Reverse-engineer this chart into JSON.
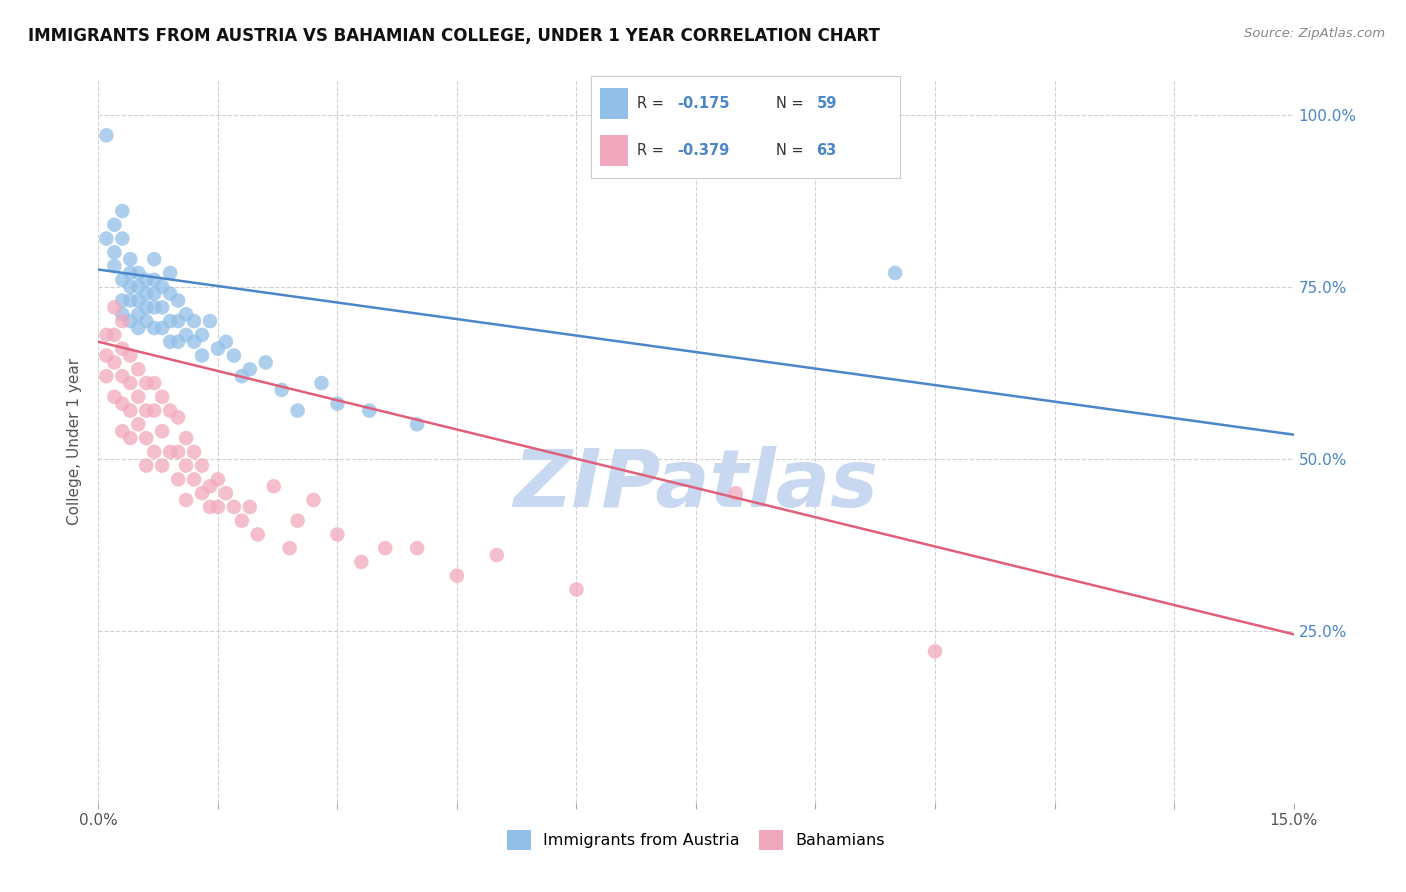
{
  "title": "IMMIGRANTS FROM AUSTRIA VS BAHAMIAN COLLEGE, UNDER 1 YEAR CORRELATION CHART",
  "source": "Source: ZipAtlas.com",
  "ylabel": "College, Under 1 year",
  "ytick_labels": [
    "",
    "25.0%",
    "50.0%",
    "75.0%",
    "100.0%"
  ],
  "ytick_values": [
    0,
    0.25,
    0.5,
    0.75,
    1.0
  ],
  "xlim": [
    0.0,
    0.15
  ],
  "ylim": [
    0.0,
    1.05
  ],
  "blue_color": "#92bfe8",
  "pink_color": "#f2a8bc",
  "blue_line_color": "#4a86c8",
  "pink_line_color": "#e0607a",
  "watermark": "ZIPatlas",
  "watermark_color": "#c8d8f0",
  "blue_scatter_x": [
    0.001,
    0.001,
    0.002,
    0.002,
    0.002,
    0.003,
    0.003,
    0.003,
    0.003,
    0.003,
    0.004,
    0.004,
    0.004,
    0.004,
    0.004,
    0.005,
    0.005,
    0.005,
    0.005,
    0.005,
    0.006,
    0.006,
    0.006,
    0.006,
    0.007,
    0.007,
    0.007,
    0.007,
    0.007,
    0.008,
    0.008,
    0.008,
    0.009,
    0.009,
    0.009,
    0.009,
    0.01,
    0.01,
    0.01,
    0.011,
    0.011,
    0.012,
    0.012,
    0.013,
    0.013,
    0.014,
    0.015,
    0.016,
    0.017,
    0.018,
    0.019,
    0.021,
    0.023,
    0.025,
    0.028,
    0.03,
    0.034,
    0.04,
    0.1
  ],
  "blue_scatter_y": [
    0.97,
    0.82,
    0.8,
    0.78,
    0.84,
    0.86,
    0.82,
    0.76,
    0.73,
    0.71,
    0.79,
    0.77,
    0.75,
    0.73,
    0.7,
    0.77,
    0.75,
    0.73,
    0.71,
    0.69,
    0.76,
    0.74,
    0.72,
    0.7,
    0.79,
    0.76,
    0.74,
    0.72,
    0.69,
    0.75,
    0.72,
    0.69,
    0.77,
    0.74,
    0.7,
    0.67,
    0.73,
    0.7,
    0.67,
    0.71,
    0.68,
    0.7,
    0.67,
    0.68,
    0.65,
    0.7,
    0.66,
    0.67,
    0.65,
    0.62,
    0.63,
    0.64,
    0.6,
    0.57,
    0.61,
    0.58,
    0.57,
    0.55,
    0.77
  ],
  "pink_scatter_x": [
    0.001,
    0.001,
    0.001,
    0.002,
    0.002,
    0.002,
    0.002,
    0.003,
    0.003,
    0.003,
    0.003,
    0.003,
    0.004,
    0.004,
    0.004,
    0.004,
    0.005,
    0.005,
    0.005,
    0.006,
    0.006,
    0.006,
    0.006,
    0.007,
    0.007,
    0.007,
    0.008,
    0.008,
    0.008,
    0.009,
    0.009,
    0.01,
    0.01,
    0.01,
    0.011,
    0.011,
    0.011,
    0.012,
    0.012,
    0.013,
    0.013,
    0.014,
    0.014,
    0.015,
    0.015,
    0.016,
    0.017,
    0.018,
    0.019,
    0.02,
    0.022,
    0.024,
    0.025,
    0.027,
    0.03,
    0.033,
    0.036,
    0.04,
    0.045,
    0.05,
    0.06,
    0.08,
    0.105
  ],
  "pink_scatter_y": [
    0.68,
    0.65,
    0.62,
    0.72,
    0.68,
    0.64,
    0.59,
    0.7,
    0.66,
    0.62,
    0.58,
    0.54,
    0.65,
    0.61,
    0.57,
    0.53,
    0.63,
    0.59,
    0.55,
    0.61,
    0.57,
    0.53,
    0.49,
    0.61,
    0.57,
    0.51,
    0.59,
    0.54,
    0.49,
    0.57,
    0.51,
    0.56,
    0.51,
    0.47,
    0.53,
    0.49,
    0.44,
    0.51,
    0.47,
    0.49,
    0.45,
    0.46,
    0.43,
    0.47,
    0.43,
    0.45,
    0.43,
    0.41,
    0.43,
    0.39,
    0.46,
    0.37,
    0.41,
    0.44,
    0.39,
    0.35,
    0.37,
    0.37,
    0.33,
    0.36,
    0.31,
    0.45,
    0.22
  ],
  "blue_line_x": [
    0.0,
    0.15
  ],
  "blue_line_y": [
    0.775,
    0.535
  ],
  "pink_line_x": [
    0.0,
    0.15
  ],
  "pink_line_y": [
    0.67,
    0.245
  ],
  "legend_R_blue": "-0.175",
  "legend_N_blue": "59",
  "legend_R_pink": "-0.379",
  "legend_N_pink": "63"
}
